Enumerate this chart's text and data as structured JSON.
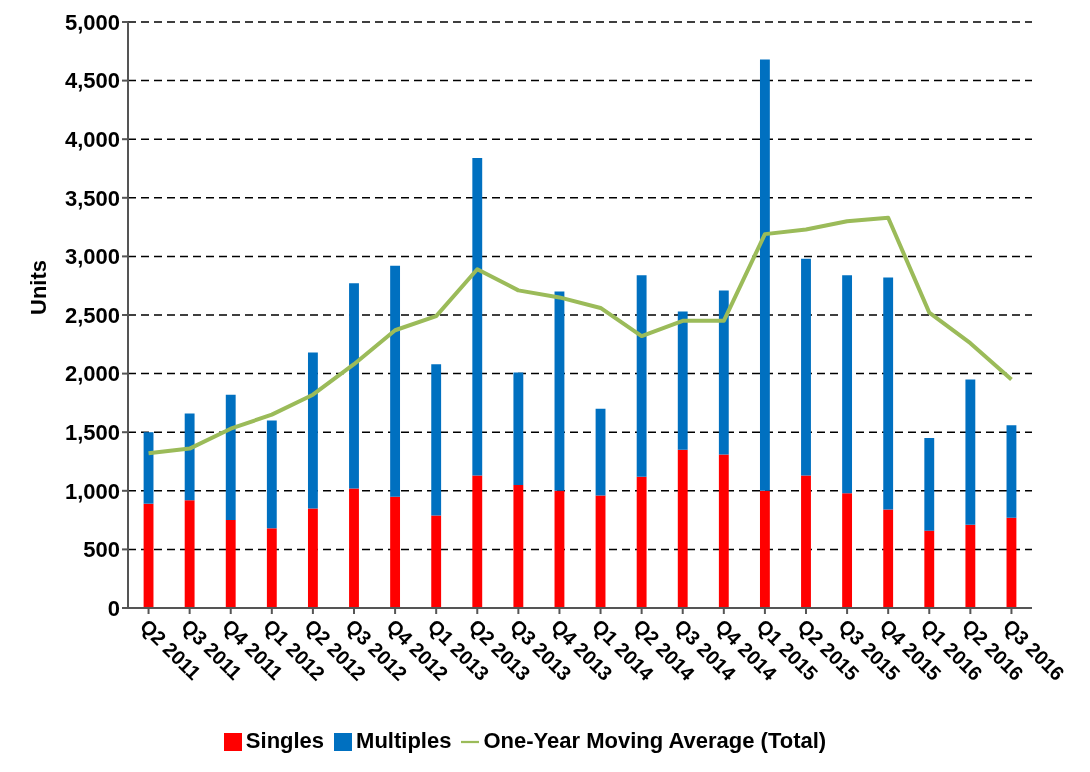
{
  "chart_data": {
    "type": "bar",
    "ylabel": "Units",
    "categories": [
      "Q2 2011",
      "Q3 2011",
      "Q4 2011",
      "Q1 2012",
      "Q2 2012",
      "Q3 2012",
      "Q4 2012",
      "Q1 2013",
      "Q2 2013",
      "Q3 2013",
      "Q4 2013",
      "Q1 2014",
      "Q2 2014",
      "Q3 2014",
      "Q4 2014",
      "Q1 2015",
      "Q2 2015",
      "Q3 2015",
      "Q4 2015",
      "Q1 2016",
      "Q2 2016",
      "Q3 2016"
    ],
    "series": [
      {
        "name": "Singles",
        "color": "#ff0000",
        "values": [
          890,
          920,
          750,
          680,
          850,
          1020,
          950,
          790,
          1130,
          1050,
          1000,
          960,
          1120,
          1350,
          1310,
          1000,
          1130,
          980,
          840,
          660,
          710,
          770
        ]
      },
      {
        "name": "Multiples",
        "color": "#0070c0",
        "values": [
          610,
          740,
          1070,
          920,
          1330,
          1750,
          1970,
          1290,
          2710,
          960,
          1700,
          740,
          1720,
          1180,
          1400,
          3680,
          1850,
          1860,
          1980,
          790,
          1240,
          790
        ]
      },
      {
        "name": "One-Year Moving Average (Total)",
        "type": "line",
        "color": "#9bbb59",
        "values": [
          1320,
          1360,
          1530,
          1650,
          1820,
          2080,
          2370,
          2490,
          2890,
          2710,
          2650,
          2560,
          2320,
          2450,
          2450,
          3190,
          3230,
          3300,
          3330,
          2520,
          2260,
          1950
        ]
      }
    ],
    "stacked": true,
    "ylim": [
      0,
      5000
    ],
    "yticks": [
      0,
      500,
      {
        "value": 1000,
        "label": "1,000"
      },
      {
        "value": 1500,
        "label": "1,500"
      },
      {
        "value": 2000,
        "label": "2,000"
      },
      {
        "value": 2500,
        "label": "2,500"
      },
      {
        "value": 3000,
        "label": "3,000"
      },
      {
        "value": 3500,
        "label": "3,500"
      },
      {
        "value": 4000,
        "label": "4,000"
      },
      {
        "value": 4500,
        "label": "4,500"
      },
      {
        "value": 5000,
        "label": "5,000"
      }
    ],
    "grid": "y",
    "legend": "bottom",
    "marker": "none"
  }
}
